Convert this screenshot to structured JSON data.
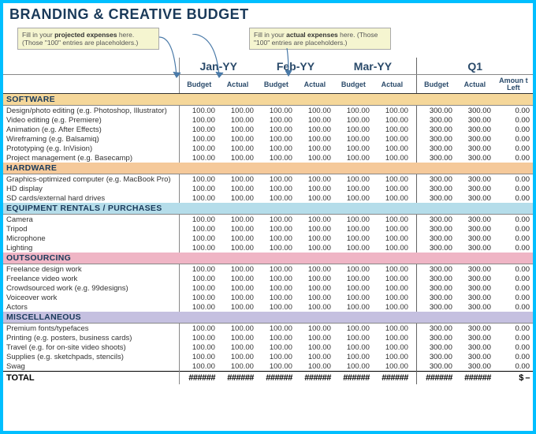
{
  "title": "BRANDING & CREATIVE BUDGET",
  "tips": {
    "projected": "Fill in your <b>projected expenses</b> here. (Those \"100\" entries are placeholders.)",
    "actual": "Fill in your <b>actual expenses</b> here. (Those \"100\" entries are placeholders.)"
  },
  "periods": {
    "m1": "Jan-YY",
    "m2": "Feb-YY",
    "m3": "Mar-YY",
    "q": "Q1"
  },
  "subheads": {
    "budget": "Budget",
    "actual": "Actual",
    "amtleft": "Amoun t Left"
  },
  "sections": [
    {
      "name": "SOFTWARE",
      "color": "#f5d79a",
      "rows": [
        {
          "label": "Design/photo editing (e.g. Photoshop, Illustrator)"
        },
        {
          "label": "Video editing (e.g. Premiere)"
        },
        {
          "label": "Animation (e.g. After Effects)"
        },
        {
          "label": "Wireframing (e.g. Balsamiq)"
        },
        {
          "label": "Prototyping (e.g. InVision)"
        },
        {
          "label": "Project management (e.g. Basecamp)"
        }
      ]
    },
    {
      "name": "HARDWARE",
      "color": "#f5c99a",
      "rows": [
        {
          "label": "Graphics-optimized computer (e.g. MacBook Pro)"
        },
        {
          "label": "HD display"
        },
        {
          "label": "SD cards/external hard drives"
        }
      ]
    },
    {
      "name": "EQUIPMENT RENTALS / PURCHASES",
      "color": "#b5ddea",
      "rows": [
        {
          "label": "Camera"
        },
        {
          "label": "Tripod"
        },
        {
          "label": "Microphone"
        },
        {
          "label": "Lighting"
        }
      ]
    },
    {
      "name": "OUTSOURCING",
      "color": "#efb5c5",
      "rows": [
        {
          "label": "Freelance design work"
        },
        {
          "label": "Freelance video work"
        },
        {
          "label": "Crowdsourced work (e.g. 99designs)"
        },
        {
          "label": "Voiceover work"
        },
        {
          "label": "Actors"
        }
      ]
    },
    {
      "name": "MISCELLANEOUS",
      "color": "#c5c0e0",
      "rows": [
        {
          "label": "Premium fonts/typefaces"
        },
        {
          "label": "Printing (e.g. posters, business cards)"
        },
        {
          "label": "Travel (e.g. for on-site video shoots)"
        },
        {
          "label": "Supplies (e.g. sketchpads, stencils)"
        },
        {
          "label": "Swag"
        }
      ]
    }
  ],
  "cell_val": "100.00",
  "q_val": "300.00",
  "zero_val": "0.00",
  "total": {
    "label": "TOTAL",
    "hash": "######",
    "dash": "$  –"
  }
}
